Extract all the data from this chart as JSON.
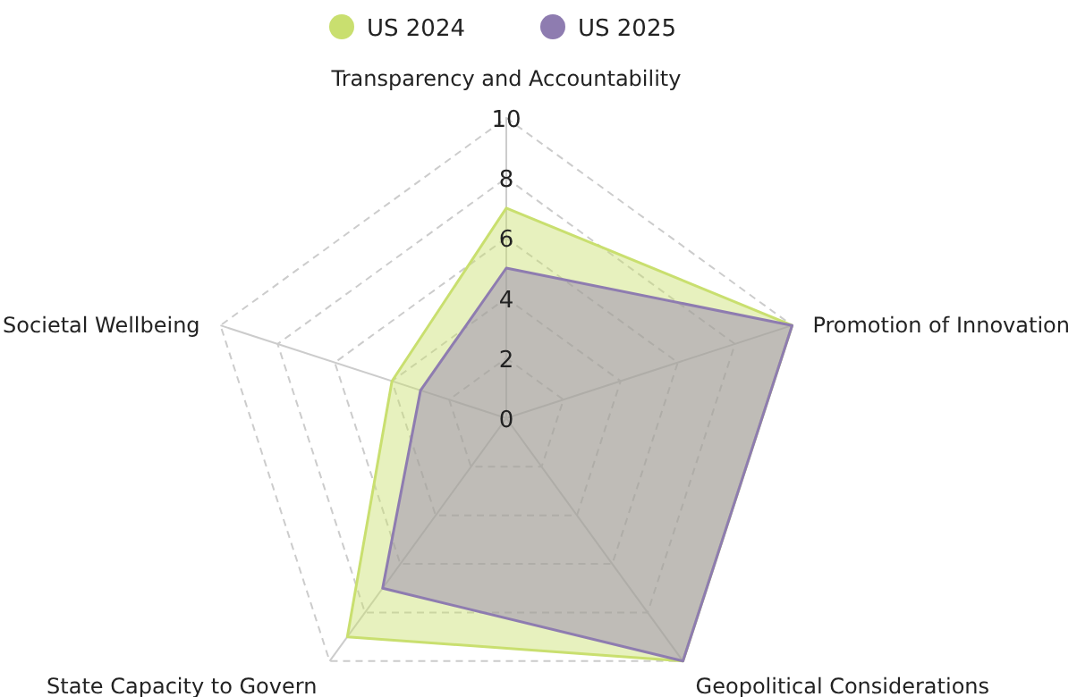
{
  "chart_data": {
    "type": "radar",
    "categories": [
      "Transparency and Accountability",
      "Promotion of Innovation",
      "Geopolitical Considerations",
      "State Capacity to Govern",
      "Societal Wellbeing"
    ],
    "series": [
      {
        "name": "US 2024",
        "color": "#c9df6f",
        "values": [
          7,
          10,
          10,
          9,
          4
        ]
      },
      {
        "name": "US 2025",
        "color": "#8e7cb0",
        "values": [
          5,
          10,
          10,
          7,
          3
        ]
      }
    ],
    "ylim": [
      0,
      10
    ],
    "yticks": [
      0,
      2,
      4,
      6,
      8,
      10
    ],
    "grid": true,
    "legend": "top"
  }
}
